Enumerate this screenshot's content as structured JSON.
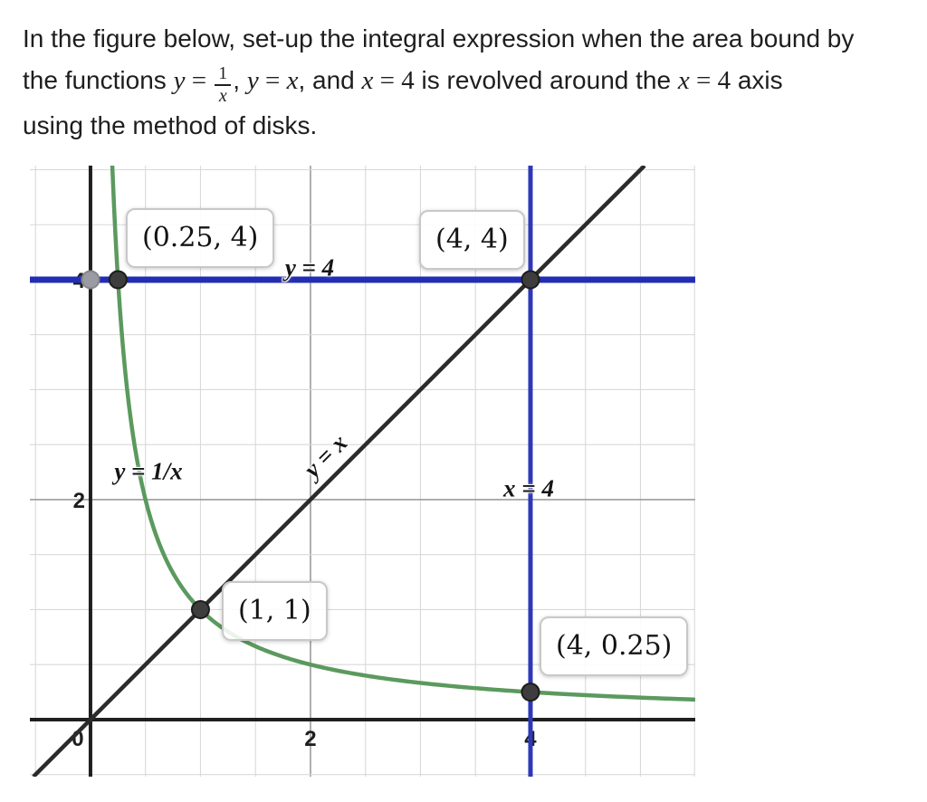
{
  "question": {
    "line1": "In the figure below, set-up the integral expression when the area bound by",
    "line2": {
      "t1": "the functions ",
      "y1": "y",
      "eq1": " = ",
      "frac": {
        "num": "1",
        "den": "x"
      },
      "c1": ", ",
      "y2": "y",
      "eq2": " = ",
      "x1": "x",
      "c2": ", and ",
      "x2": "x",
      "eq3": " = ",
      "n1": "4",
      "t2": " is revolved around the ",
      "x3": "x",
      "eq4": " = ",
      "n2": "4",
      "t3": " axis"
    },
    "line3": "using the method of disks."
  },
  "chart_data": {
    "type": "line",
    "axes": {
      "xmin": -0.551,
      "xmax": 5.498,
      "ymin": -0.519,
      "ymax": 5.037,
      "grid_minor_step": 0.5,
      "grid_major_step": 2,
      "x_ticks": [
        {
          "v": 0,
          "label": "0"
        },
        {
          "v": 2,
          "label": "2"
        },
        {
          "v": 4,
          "label": "4"
        }
      ],
      "y_ticks": [
        {
          "v": 2,
          "label": "2"
        },
        {
          "v": 4,
          "label": "4"
        }
      ]
    },
    "series": [
      {
        "name": "reciprocal-curve",
        "equation": "y = 1/x",
        "kind": "reciprocal",
        "color": "#5b9a5e",
        "width": 4.5
      },
      {
        "name": "identity-line",
        "equation": "y = x",
        "kind": "identity",
        "color": "#2b2b2b",
        "width": 4.5
      },
      {
        "name": "horizontal-line",
        "equation": "y = 4",
        "kind": "hline",
        "value": 4,
        "color": "#232db4",
        "width": 7
      },
      {
        "name": "vertical-line",
        "equation": "x = 4",
        "kind": "vline",
        "value": 4,
        "color": "#2e38b6",
        "width": 5
      }
    ],
    "points": [
      {
        "x": 0,
        "y": 4,
        "fill": "#9b9ba3",
        "stroke": "#85858d"
      },
      {
        "x": 0.25,
        "y": 4,
        "fill": "#3d3d3d",
        "stroke": "#1c1c1c"
      },
      {
        "x": 4,
        "y": 4,
        "fill": "#3d3d3d",
        "stroke": "#1c1c1c"
      },
      {
        "x": 1,
        "y": 1,
        "fill": "#3d3d3d",
        "stroke": "#1c1c1c"
      },
      {
        "x": 4,
        "y": 0.25,
        "fill": "#3d3d3d",
        "stroke": "#1c1c1c"
      }
    ],
    "point_labels": [
      {
        "text": "(0.25, 4)",
        "anchor": {
          "x": 0.25,
          "y": 4
        }
      },
      {
        "text": "(4, 4)",
        "anchor": {
          "x": 4,
          "y": 4
        }
      },
      {
        "text": "(1, 1)",
        "anchor": {
          "x": 1,
          "y": 1
        }
      },
      {
        "text": "(4, 0.25)",
        "anchor": {
          "x": 4,
          "y": 0.25
        }
      }
    ],
    "curve_labels": [
      {
        "text": "y = 4"
      },
      {
        "text": "y = 1/x"
      },
      {
        "text": "x = 4"
      },
      {
        "text": "y = x",
        "rotation": -45
      }
    ],
    "colors": {
      "grid_minor": "#d9d9d9",
      "grid_major": "#9c9c9c",
      "axis": "#1f1f1f",
      "tick_text": "#1d1d1d",
      "label_box_border": "#c8c8c8"
    }
  }
}
